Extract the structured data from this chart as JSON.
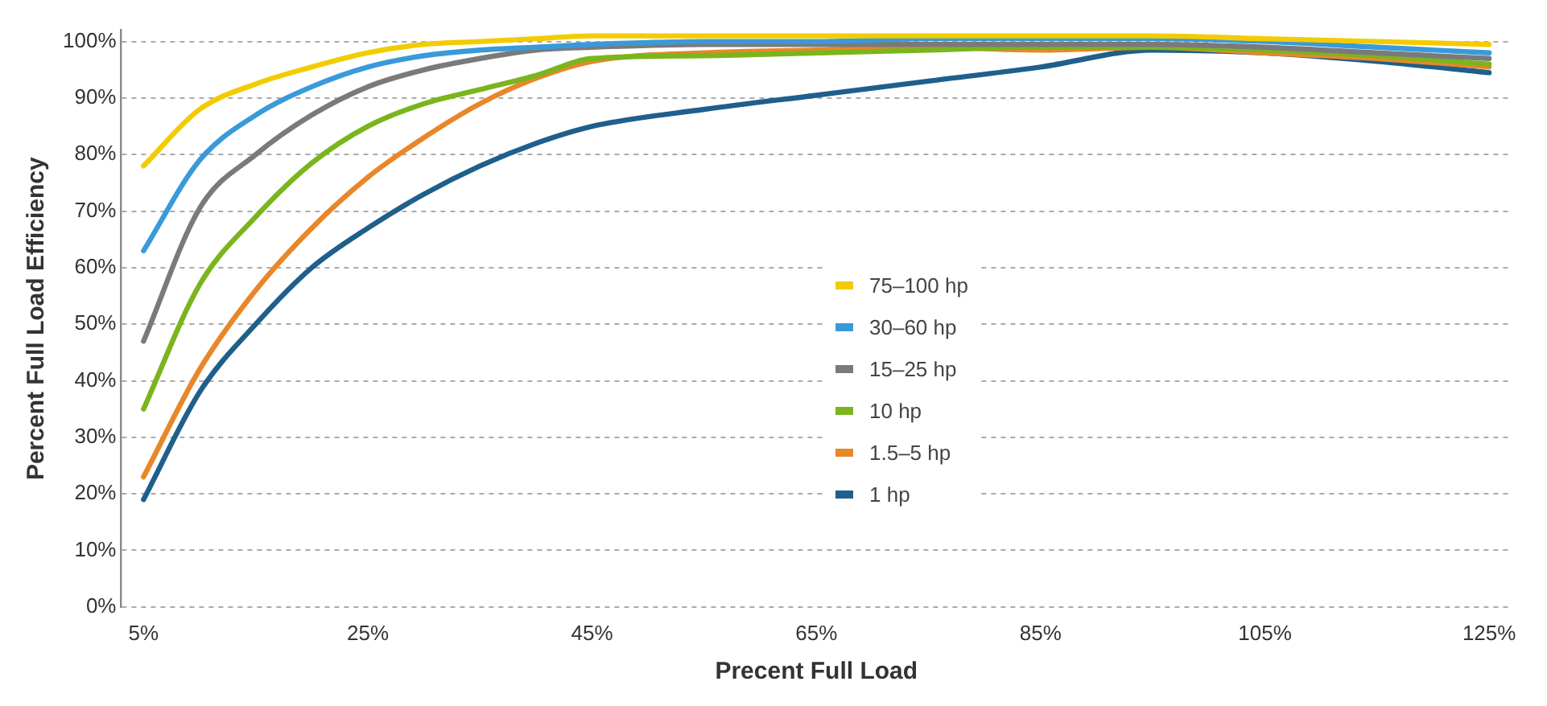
{
  "chart_data": {
    "type": "line",
    "xlabel": "Precent Full Load",
    "ylabel": "Percent Full Load Efficiency",
    "x": [
      5,
      10,
      15,
      20,
      25,
      30,
      35,
      40,
      45,
      55,
      65,
      75,
      85,
      95,
      105,
      115,
      125
    ],
    "series": [
      {
        "name": "75–100 hp",
        "color": "#f2cc00",
        "values": [
          78,
          88,
          92.5,
          95.5,
          98,
          99.5,
          100,
          100.5,
          101,
          101,
          101,
          101,
          101,
          101,
          100.5,
          100,
          99.5
        ]
      },
      {
        "name": "30–60 hp",
        "color": "#3a9ad9",
        "values": [
          63,
          79,
          87,
          92,
          95.5,
          97.5,
          98.5,
          99,
          99.5,
          100,
          100,
          100.5,
          100.5,
          100.5,
          100,
          99,
          98
        ]
      },
      {
        "name": "15–25 hp",
        "color": "#7a7a7a",
        "values": [
          47,
          70.5,
          80,
          87,
          92,
          95,
          97,
          98.5,
          99,
          99.5,
          99.5,
          99.5,
          99.5,
          99.5,
          99,
          98,
          97
        ]
      },
      {
        "name": "10 hp",
        "color": "#7ab51d",
        "values": [
          35,
          57,
          69,
          78.5,
          85,
          89,
          91.5,
          94,
          97,
          97.5,
          98,
          98.5,
          99,
          99,
          98.5,
          97.5,
          96
        ]
      },
      {
        "name": "1.5–5 hp",
        "color": "#e8872a",
        "values": [
          23,
          42,
          56,
          67,
          76,
          83,
          89,
          93.5,
          96.5,
          98,
          98.5,
          99,
          98.5,
          99,
          98,
          97,
          95.5
        ]
      },
      {
        "name": "1 hp",
        "color": "#1f5f8b",
        "values": [
          19,
          38,
          50,
          60,
          67,
          73,
          78,
          82,
          85,
          88,
          90.5,
          93,
          95.5,
          98.5,
          98,
          96.5,
          94.5
        ]
      }
    ],
    "xlim": [
      3,
      127
    ],
    "xticks": [
      {
        "value": 5,
        "label": "5%"
      },
      {
        "value": 25,
        "label": "25%"
      },
      {
        "value": 45,
        "label": "45%"
      },
      {
        "value": 65,
        "label": "65%"
      },
      {
        "value": 85,
        "label": "85%"
      },
      {
        "value": 105,
        "label": "105%"
      },
      {
        "value": 125,
        "label": "125%"
      }
    ],
    "ylim": [
      0,
      102
    ],
    "yticks": [
      {
        "value": 0,
        "label": "0%"
      },
      {
        "value": 10,
        "label": "10%"
      },
      {
        "value": 20,
        "label": "20%"
      },
      {
        "value": 30,
        "label": "30%"
      },
      {
        "value": 40,
        "label": "40%"
      },
      {
        "value": 50,
        "label": "50%"
      },
      {
        "value": 60,
        "label": "60%"
      },
      {
        "value": 70,
        "label": "70%"
      },
      {
        "value": 80,
        "label": "80%"
      },
      {
        "value": 90,
        "label": "90%"
      },
      {
        "value": 100,
        "label": "100%"
      }
    ],
    "grid": "y",
    "legend": "center",
    "marker": "none",
    "line_style": "solid"
  }
}
